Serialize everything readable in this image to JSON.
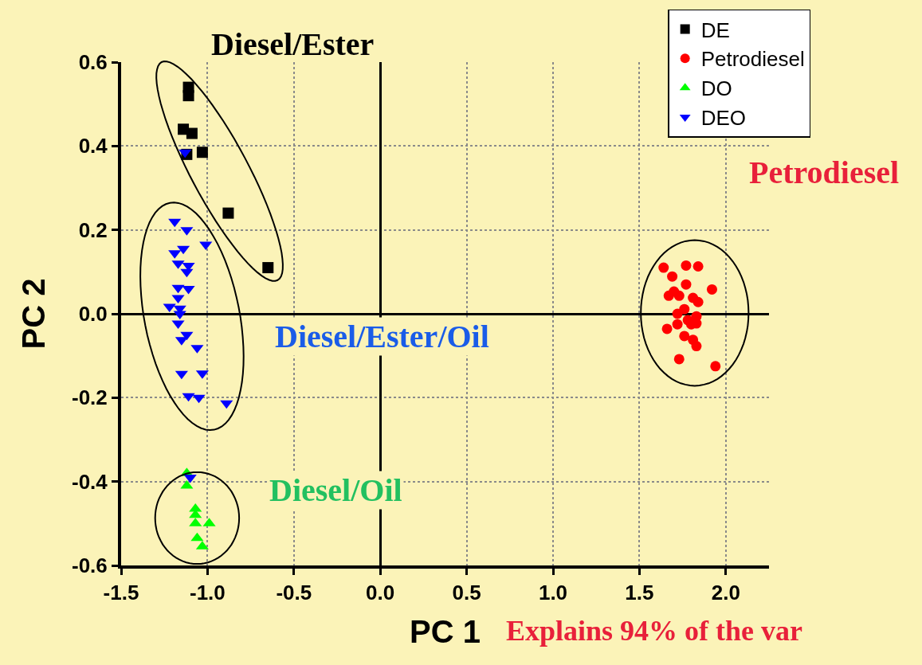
{
  "chart_data": {
    "type": "scatter",
    "xlabel": "PC 1",
    "ylabel": "PC 2",
    "annotations": [
      "Diesel/Ester",
      "Petrodiesel",
      "Diesel/Ester/Oil",
      "Diesel/Oil",
      "Explains 94% of the var"
    ],
    "xlim": [
      -1.5,
      2.25
    ],
    "ylim": [
      -0.6,
      0.6
    ],
    "xticks": [
      {
        "value": -1.5,
        "label": "-1.5"
      },
      {
        "value": -1,
        "label": "-1.0"
      },
      {
        "value": -0.5,
        "label": "-0.5"
      },
      {
        "value": 0,
        "label": "0.0"
      },
      {
        "value": 0.5,
        "label": "0.5"
      },
      {
        "value": 1,
        "label": "1.0"
      },
      {
        "value": 1.5,
        "label": "1.5"
      },
      {
        "value": 2,
        "label": "2.0"
      }
    ],
    "yticks": [
      {
        "value": -0.6,
        "label": "-0.6"
      },
      {
        "value": -0.4,
        "label": "-0.4"
      },
      {
        "value": -0.2,
        "label": "-0.2"
      },
      {
        "value": 0,
        "label": "0.0"
      },
      {
        "value": 0.2,
        "label": "0.2"
      },
      {
        "value": 0.4,
        "label": "0.4"
      },
      {
        "value": 0.6,
        "label": "0.6"
      }
    ],
    "grid": true,
    "legend": "top right",
    "series": [
      {
        "name": "DE",
        "color": "#000000",
        "marker": "square",
        "x": [
          -1.11,
          -1.11,
          -1.14,
          -1.09,
          -1.12,
          -1.03,
          -0.88,
          -0.65
        ],
        "values": [
          0.54,
          0.52,
          0.44,
          0.43,
          0.38,
          0.385,
          0.24,
          0.11
        ]
      },
      {
        "name": "Petrodiesel",
        "color": "#ff0000",
        "marker": "circle",
        "x": [
          1.64,
          1.77,
          1.84,
          1.69,
          1.77,
          1.92,
          1.7,
          1.67,
          1.73,
          1.81,
          1.84,
          1.76,
          1.72,
          1.83,
          1.78,
          1.72,
          1.8,
          1.83,
          1.66,
          1.76,
          1.81,
          1.83,
          1.73,
          1.94
        ],
        "values": [
          0.11,
          0.115,
          0.113,
          0.089,
          0.07,
          0.058,
          0.053,
          0.043,
          0.043,
          0.038,
          0.028,
          0.011,
          0,
          -0.006,
          -0.015,
          -0.025,
          -0.025,
          -0.023,
          -0.036,
          -0.053,
          -0.062,
          -0.077,
          -0.108,
          -0.125
        ]
      },
      {
        "name": "DO",
        "color": "#00ff00",
        "marker": "triangle",
        "x": [
          -1.12,
          -1.12,
          -1.07,
          -1.07,
          -1.07,
          -0.99,
          -1.06,
          -1.03
        ],
        "values": [
          -0.38,
          -0.41,
          -0.465,
          -0.48,
          -0.5,
          -0.5,
          -0.535,
          -0.555
        ]
      },
      {
        "name": "DEO",
        "color": "#0000ff",
        "marker": "triangle-down",
        "x": [
          -1.13,
          -1.19,
          -1.12,
          -1.01,
          -1.14,
          -1.19,
          -1.17,
          -1.11,
          -1.12,
          -1.17,
          -1.11,
          -1.17,
          -1.22,
          -1.16,
          -1.16,
          -1.17,
          -1.12,
          -1.15,
          -1.06,
          -1.15,
          -1.03,
          -1.11,
          -1.05,
          -0.89,
          -1.1
        ],
        "values": [
          0.385,
          0.22,
          0.2,
          0.165,
          0.155,
          0.145,
          0.12,
          0.115,
          0.1,
          0.062,
          0.06,
          0.038,
          0.017,
          0.013,
          0,
          -0.023,
          -0.05,
          -0.062,
          -0.081,
          -0.143,
          -0.142,
          -0.196,
          -0.2,
          -0.213,
          -0.39
        ]
      }
    ]
  }
}
